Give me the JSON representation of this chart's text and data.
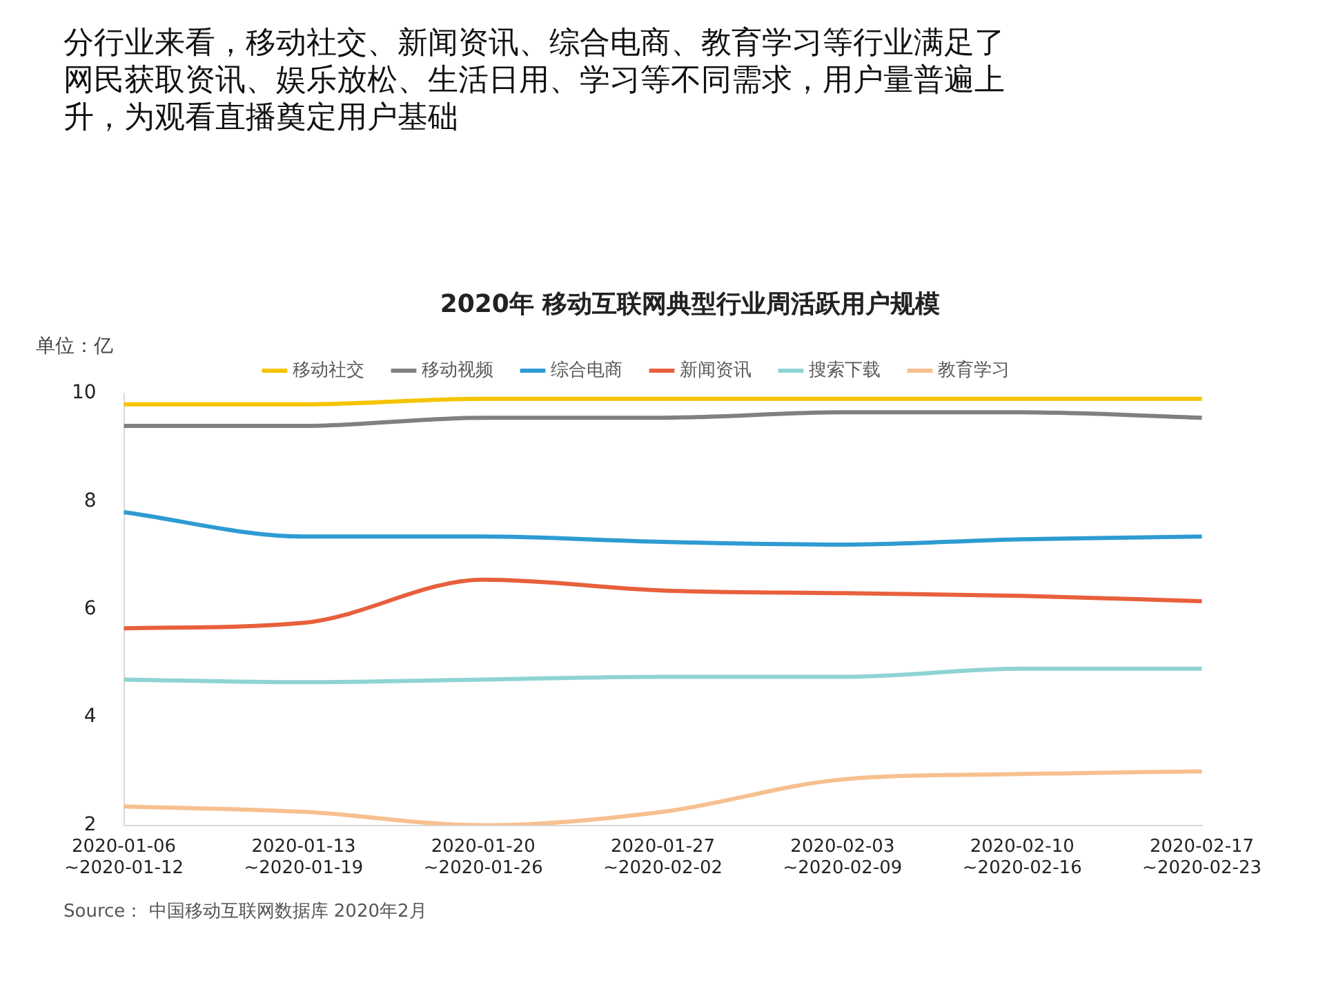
{
  "chart_data": {
    "type": "line",
    "title": "分行业来看，移动社交、新闻资讯、综合电商、教育学习等行业满足了网民获取资讯、娱乐放松、生活日用、学习等不同需求，用户量普遍上升，为观看直播奠定用户基础",
    "subtitle": "2020年 移动互联网典型行业周活跃用户规模",
    "ylabel": "单位：亿",
    "annotations": [
      "Source： 中国移动互联网数据库 2020年2月"
    ],
    "categories": [
      "2020-01-06\n~2020-01-12",
      "2020-01-13\n~2020-01-19",
      "2020-01-20\n~2020-01-26",
      "2020-01-27\n~2020-02-02",
      "2020-02-03\n~2020-02-09",
      "2020-02-10\n~2020-02-16",
      "2020-02-17\n~2020-02-23"
    ],
    "series": [
      {
        "name": "移动社交",
        "color": "#f5c400",
        "values": [
          9.8,
          9.8,
          9.9,
          9.9,
          9.9,
          9.9,
          9.9
        ]
      },
      {
        "name": "移动视频",
        "color": "#808080",
        "values": [
          9.4,
          9.4,
          9.55,
          9.55,
          9.65,
          9.65,
          9.55
        ]
      },
      {
        "name": "综合电商",
        "color": "#2e9bd3",
        "values": [
          7.8,
          7.35,
          7.35,
          7.25,
          7.2,
          7.3,
          7.35
        ]
      },
      {
        "name": "新闻资讯",
        "color": "#e8603c",
        "values": [
          5.65,
          5.75,
          6.55,
          6.35,
          6.3,
          6.25,
          6.15
        ]
      },
      {
        "name": "搜索下载",
        "color": "#8fd3d3",
        "values": [
          4.7,
          4.65,
          4.7,
          4.75,
          4.75,
          4.9,
          4.9
        ]
      },
      {
        "name": "教育学习",
        "color": "#f7c08f",
        "values": [
          2.35,
          2.25,
          2.0,
          2.25,
          2.85,
          2.95,
          3.0
        ]
      }
    ],
    "ylim": [
      2,
      10
    ],
    "yticks": [
      2,
      4,
      6,
      8,
      10
    ],
    "grid": false,
    "legend": "top",
    "marker": "none",
    "line_style": "solid"
  }
}
